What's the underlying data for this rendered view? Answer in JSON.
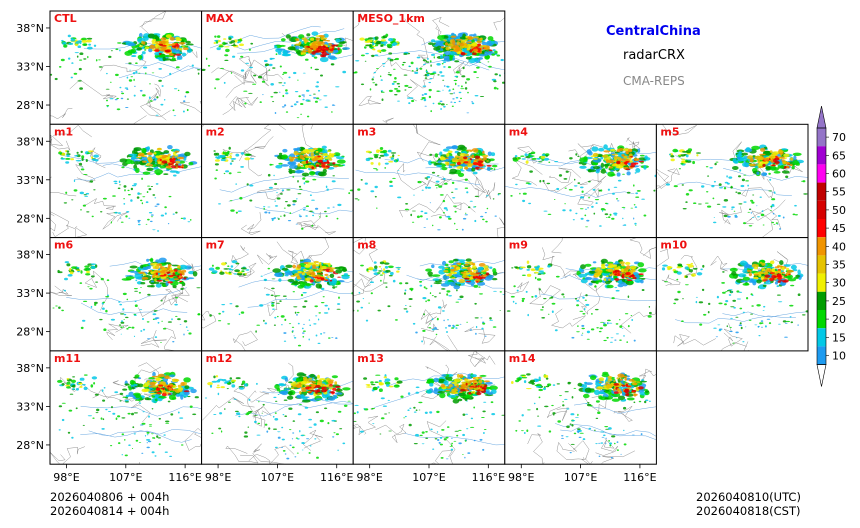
{
  "header": {
    "region": "CentralChina",
    "product": "radarCRX",
    "system": "CMA-REPS",
    "region_color": "#0000ee",
    "system_color": "#888888"
  },
  "footer": {
    "init_utc": "2026040806  +  004h",
    "init_cst": "2026040814  +  004h",
    "valid_utc": "2026040810(UTC)",
    "valid_cst": "2026040818(CST)"
  },
  "chart_data": {
    "type": "heatmap",
    "variable": "composite radar reflectivity (dBZ)",
    "panels": [
      {
        "label": "CTL",
        "row": 0,
        "col": 0
      },
      {
        "label": "MAX",
        "row": 0,
        "col": 1
      },
      {
        "label": "MESO_1km",
        "row": 0,
        "col": 2
      },
      {
        "label": "m1",
        "row": 1,
        "col": 0
      },
      {
        "label": "m2",
        "row": 1,
        "col": 1
      },
      {
        "label": "m3",
        "row": 1,
        "col": 2
      },
      {
        "label": "m4",
        "row": 1,
        "col": 3
      },
      {
        "label": "m5",
        "row": 1,
        "col": 4
      },
      {
        "label": "m6",
        "row": 2,
        "col": 0
      },
      {
        "label": "m7",
        "row": 2,
        "col": 1
      },
      {
        "label": "m8",
        "row": 2,
        "col": 2
      },
      {
        "label": "m9",
        "row": 2,
        "col": 3
      },
      {
        "label": "m10",
        "row": 2,
        "col": 4
      },
      {
        "label": "m11",
        "row": 3,
        "col": 0
      },
      {
        "label": "m12",
        "row": 3,
        "col": 1
      },
      {
        "label": "m13",
        "row": 3,
        "col": 2
      },
      {
        "label": "m14",
        "row": 3,
        "col": 3
      }
    ],
    "panel_label_color": "#ee1111",
    "lat_ticks": [
      "38°N",
      "33°N",
      "28°N"
    ],
    "lat_values": [
      38,
      33,
      28
    ],
    "lon_ticks": [
      "98°E",
      "107°E",
      "116°E"
    ],
    "lon_values": [
      98,
      107,
      116
    ],
    "lat_range": [
      25.5,
      40.2
    ],
    "lon_range": [
      95.5,
      118.5
    ],
    "colorbar": {
      "labels": [
        "10",
        "15",
        "20",
        "25",
        "30",
        "35",
        "40",
        "45",
        "50",
        "55",
        "60",
        "65",
        "70"
      ],
      "colors": [
        "#1e9bf0",
        "#03c8e6",
        "#00d800",
        "#009c00",
        "#f0f000",
        "#e6c300",
        "#f09400",
        "#ff0000",
        "#d60000",
        "#c00000",
        "#ff00f0",
        "#a000d2",
        "#9474c8"
      ],
      "extend": "both"
    }
  }
}
